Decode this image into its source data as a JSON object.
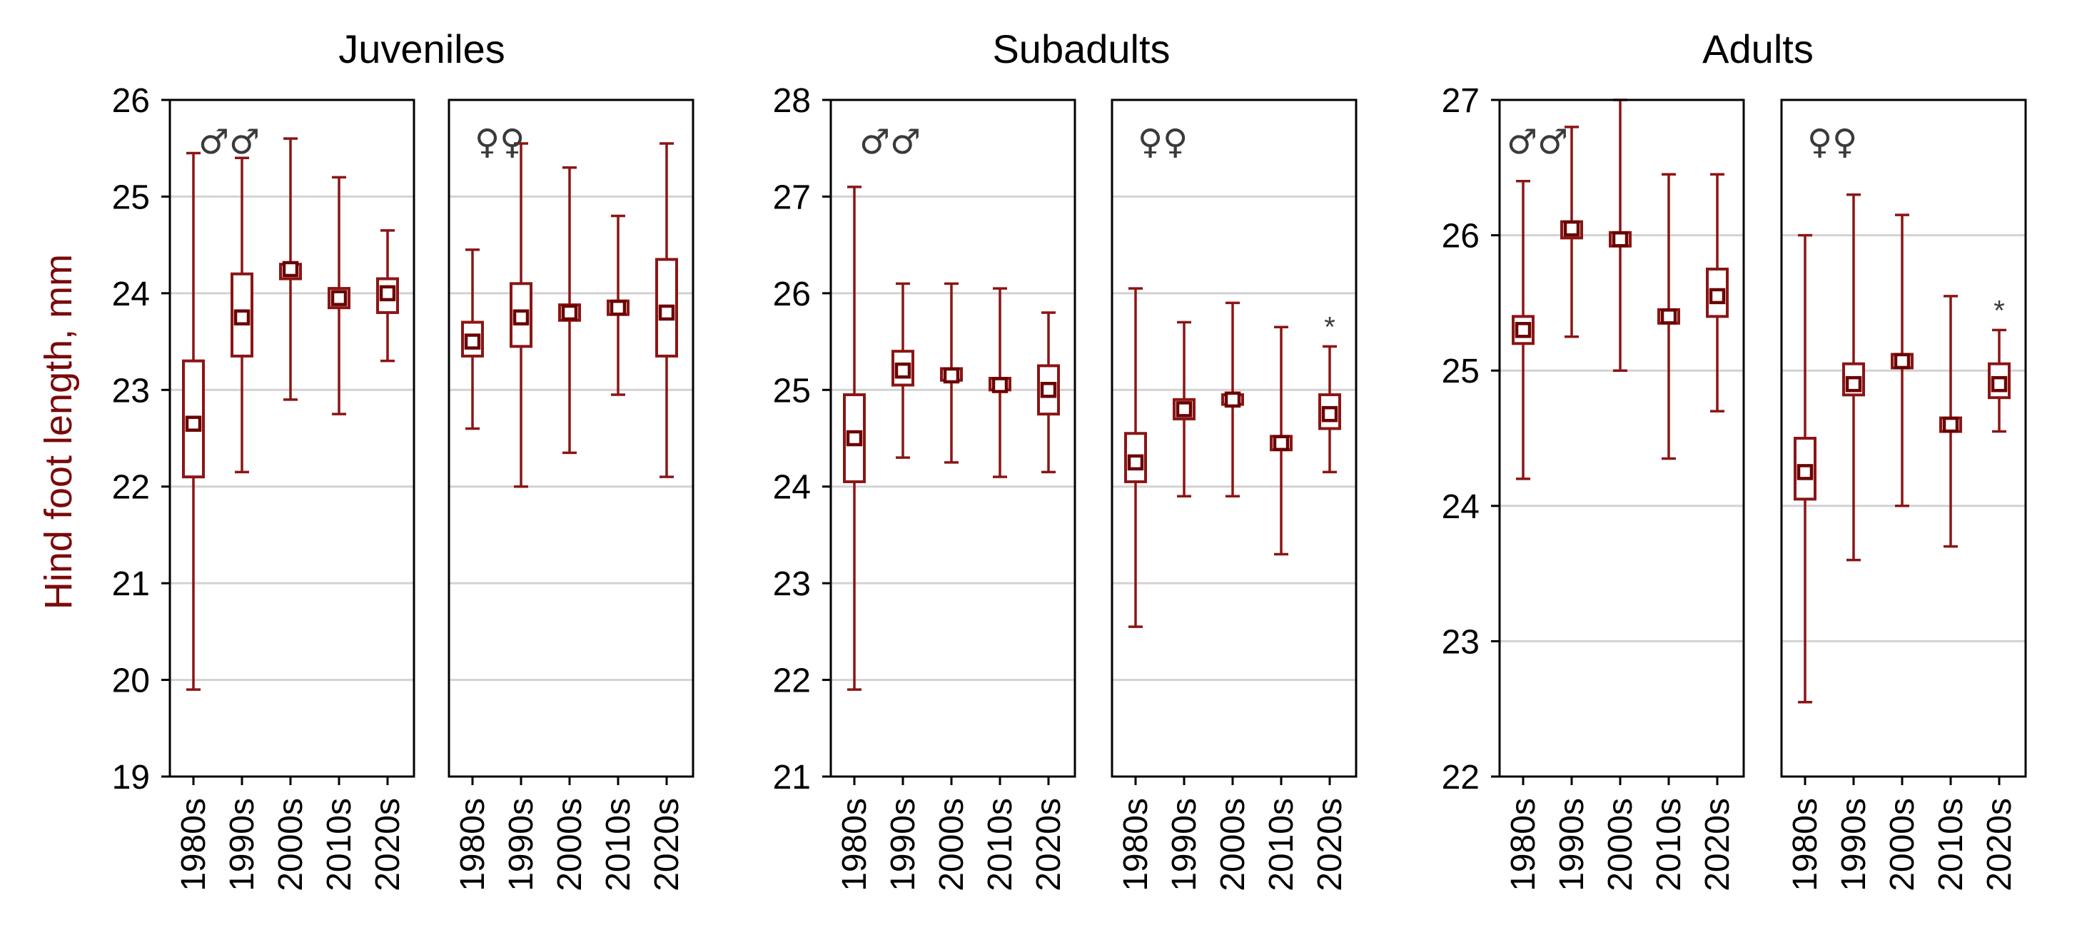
{
  "chart_data": {
    "type": "boxplot",
    "ylabel": "Hind foot length, mm",
    "categories": [
      "1980s",
      "1990s",
      "2000s",
      "2010s",
      "2020s"
    ],
    "colors": {
      "series": "#8b1515",
      "frame": "#000000",
      "grid": "#d2d2d2"
    },
    "groups": [
      {
        "title": "Juveniles",
        "ylim": [
          19,
          26
        ],
        "yticks": [
          "19",
          "20",
          "21",
          "22",
          "23",
          "24",
          "25",
          "26"
        ],
        "panels": [
          {
            "sex": "♂♂",
            "boxes": [
              {
                "min": 19.9,
                "q1": 22.1,
                "median": 22.65,
                "q3": 23.3,
                "max": 25.45
              },
              {
                "min": 22.15,
                "q1": 23.35,
                "median": 23.75,
                "q3": 24.2,
                "max": 25.4
              },
              {
                "min": 22.9,
                "q1": 24.15,
                "median": 24.25,
                "q3": 24.3,
                "max": 25.6
              },
              {
                "min": 22.75,
                "q1": 23.85,
                "median": 23.95,
                "q3": 24.05,
                "max": 25.2
              },
              {
                "min": 23.3,
                "q1": 23.8,
                "median": 24.0,
                "q3": 24.15,
                "max": 24.65
              }
            ]
          },
          {
            "sex": "♀♀",
            "boxes": [
              {
                "min": 22.6,
                "q1": 23.35,
                "median": 23.5,
                "q3": 23.7,
                "max": 24.45
              },
              {
                "min": 22.0,
                "q1": 23.45,
                "median": 23.75,
                "q3": 24.1,
                "max": 25.55
              },
              {
                "min": 22.35,
                "q1": 23.72,
                "median": 23.8,
                "q3": 23.88,
                "max": 25.3
              },
              {
                "min": 22.95,
                "q1": 23.78,
                "median": 23.85,
                "q3": 23.92,
                "max": 24.8
              },
              {
                "min": 22.1,
                "q1": 23.35,
                "median": 23.8,
                "q3": 24.35,
                "max": 25.55
              }
            ]
          }
        ]
      },
      {
        "title": "Subadults",
        "ylim": [
          21,
          28
        ],
        "yticks": [
          "21",
          "22",
          "23",
          "24",
          "25",
          "26",
          "27",
          "28"
        ],
        "panels": [
          {
            "sex": "♂♂",
            "boxes": [
              {
                "min": 21.9,
                "q1": 24.05,
                "median": 24.5,
                "q3": 24.95,
                "max": 27.1
              },
              {
                "min": 24.3,
                "q1": 25.05,
                "median": 25.2,
                "q3": 25.4,
                "max": 26.1
              },
              {
                "min": 24.25,
                "q1": 25.1,
                "median": 25.15,
                "q3": 25.22,
                "max": 26.1
              },
              {
                "min": 24.1,
                "q1": 25.0,
                "median": 25.05,
                "q3": 25.12,
                "max": 26.05
              },
              {
                "min": 24.15,
                "q1": 24.75,
                "median": 25.0,
                "q3": 25.25,
                "max": 25.8
              }
            ]
          },
          {
            "sex": "♀♀",
            "boxes": [
              {
                "min": 22.55,
                "q1": 24.05,
                "median": 24.25,
                "q3": 24.55,
                "max": 26.05
              },
              {
                "min": 23.9,
                "q1": 24.7,
                "median": 24.8,
                "q3": 24.9,
                "max": 25.7
              },
              {
                "min": 23.9,
                "q1": 24.85,
                "median": 24.9,
                "q3": 24.95,
                "max": 25.9
              },
              {
                "min": 23.3,
                "q1": 24.38,
                "median": 24.45,
                "q3": 24.52,
                "max": 25.65
              },
              {
                "min": 24.15,
                "q1": 24.6,
                "median": 24.75,
                "q3": 24.95,
                "max": 25.45,
                "asterisk": "*"
              }
            ]
          }
        ]
      },
      {
        "title": "Adults",
        "ylim": [
          22,
          27
        ],
        "yticks": [
          "22",
          "23",
          "24",
          "25",
          "26",
          "27"
        ],
        "panels": [
          {
            "sex": "♂♂",
            "boxes": [
              {
                "min": 24.2,
                "q1": 25.2,
                "median": 25.3,
                "q3": 25.4,
                "max": 26.4
              },
              {
                "min": 25.25,
                "q1": 25.98,
                "median": 26.05,
                "q3": 26.1,
                "max": 26.8
              },
              {
                "min": 25.0,
                "q1": 25.92,
                "median": 25.97,
                "q3": 26.02,
                "max": 27.0
              },
              {
                "min": 24.35,
                "q1": 25.35,
                "median": 25.4,
                "q3": 25.45,
                "max": 26.45
              },
              {
                "min": 24.7,
                "q1": 25.4,
                "median": 25.55,
                "q3": 25.75,
                "max": 26.45
              }
            ]
          },
          {
            "sex": "♀♀",
            "boxes": [
              {
                "min": 22.55,
                "q1": 24.05,
                "median": 24.25,
                "q3": 24.5,
                "max": 26.0
              },
              {
                "min": 23.6,
                "q1": 24.82,
                "median": 24.9,
                "q3": 25.05,
                "max": 26.3
              },
              {
                "min": 24.0,
                "q1": 25.02,
                "median": 25.07,
                "q3": 25.12,
                "max": 26.15
              },
              {
                "min": 23.7,
                "q1": 24.55,
                "median": 24.6,
                "q3": 24.65,
                "max": 25.55
              },
              {
                "min": 24.55,
                "q1": 24.8,
                "median": 24.9,
                "q3": 25.05,
                "max": 25.3,
                "asterisk": "*"
              }
            ]
          }
        ]
      }
    ]
  }
}
